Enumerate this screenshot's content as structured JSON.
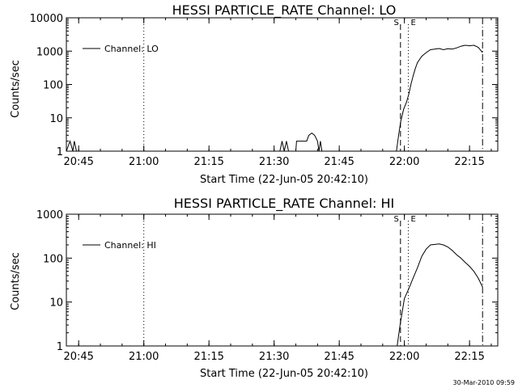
{
  "footer": {
    "timestamp": "30-Mar-2010 09:59"
  },
  "chart_data": [
    {
      "type": "line",
      "title": "HESSI PARTICLE_RATE Channel: LO",
      "xlabel": "Start Time (22-Jun-05 20:42:10)",
      "ylabel": "Counts/sec",
      "x_unit": "minutes of day (HH:MM)",
      "xlim": [
        "20:42:10",
        "22:21:30"
      ],
      "x_ticks": [
        "20:45",
        "21:00",
        "21:15",
        "21:30",
        "21:45",
        "22:00",
        "22:15"
      ],
      "y_scale": "log",
      "ylim": [
        1,
        10000
      ],
      "y_ticks": [
        "1",
        "10",
        "100",
        "1000",
        "10000"
      ],
      "legend": {
        "position": "top-left",
        "entries": [
          "Channel: LO"
        ]
      },
      "markers": [
        {
          "label": "S",
          "time": "21:59:06",
          "style": "dashed"
        },
        {
          "label": "E",
          "time": "22:00:54",
          "style": "dotted"
        }
      ],
      "vlines": [
        {
          "time": "21:00",
          "style": "dotted"
        },
        {
          "time": "22:18",
          "style": "dash-dot"
        }
      ],
      "series": [
        {
          "name": "Channel: LO",
          "points": [
            [
              "20:42:10",
              1
            ],
            [
              "20:43:00",
              2
            ],
            [
              "20:43:40",
              1
            ],
            [
              "20:44:00",
              2
            ],
            [
              "20:44:30",
              1
            ],
            [
              "21:31:20",
              1
            ],
            [
              "21:31:50",
              2
            ],
            [
              "21:32:20",
              1
            ],
            [
              "21:32:50",
              2
            ],
            [
              "21:33:20",
              1
            ],
            [
              "21:35:00",
              1
            ],
            [
              "21:35:10",
              2
            ],
            [
              "21:37:30",
              2
            ],
            [
              "21:38:00",
              3
            ],
            [
              "21:38:40",
              3.5
            ],
            [
              "21:39:20",
              3
            ],
            [
              "21:40:00",
              2
            ],
            [
              "21:40:20",
              1
            ],
            [
              "21:40:40",
              2
            ],
            [
              "21:41:00",
              1
            ],
            [
              "21:58:10",
              1
            ],
            [
              "21:58:40",
              3
            ],
            [
              "21:59:10",
              8
            ],
            [
              "21:59:50",
              18
            ],
            [
              "22:00:30",
              30
            ],
            [
              "22:01:00",
              50
            ],
            [
              "22:01:30",
              100
            ],
            [
              "22:02:00",
              180
            ],
            [
              "22:02:30",
              300
            ],
            [
              "22:03:00",
              450
            ],
            [
              "22:04:00",
              700
            ],
            [
              "22:05:00",
              900
            ],
            [
              "22:06:00",
              1100
            ],
            [
              "22:07:00",
              1150
            ],
            [
              "22:08:00",
              1200
            ],
            [
              "22:09:00",
              1100
            ],
            [
              "22:10:00",
              1180
            ],
            [
              "22:11:00",
              1150
            ],
            [
              "22:12:00",
              1250
            ],
            [
              "22:13:00",
              1400
            ],
            [
              "22:14:00",
              1500
            ],
            [
              "22:15:00",
              1450
            ],
            [
              "22:16:00",
              1500
            ],
            [
              "22:17:00",
              1300
            ],
            [
              "22:18:00",
              900
            ]
          ]
        }
      ]
    },
    {
      "type": "line",
      "title": "HESSI PARTICLE_RATE Channel: HI",
      "xlabel": "Start Time (22-Jun-05 20:42:10)",
      "ylabel": "Counts/sec",
      "x_unit": "minutes of day (HH:MM)",
      "xlim": [
        "20:42:10",
        "22:21:30"
      ],
      "x_ticks": [
        "20:45",
        "21:00",
        "21:15",
        "21:30",
        "21:45",
        "22:00",
        "22:15"
      ],
      "y_scale": "log",
      "ylim": [
        1,
        1000
      ],
      "y_ticks": [
        "1",
        "10",
        "100",
        "1000"
      ],
      "legend": {
        "position": "top-left",
        "entries": [
          "Channel: HI"
        ]
      },
      "markers": [
        {
          "label": "S",
          "time": "21:59:06",
          "style": "dashed"
        },
        {
          "label": "E",
          "time": "22:00:54",
          "style": "dotted"
        }
      ],
      "vlines": [
        {
          "time": "21:00",
          "style": "dotted"
        },
        {
          "time": "22:18",
          "style": "dash-dot"
        }
      ],
      "series": [
        {
          "name": "Channel: HI",
          "points": [
            [
              "21:58:20",
              1
            ],
            [
              "21:59:00",
              3
            ],
            [
              "21:59:30",
              6
            ],
            [
              "22:00:00",
              12
            ],
            [
              "22:01:00",
              20
            ],
            [
              "22:02:00",
              35
            ],
            [
              "22:03:00",
              60
            ],
            [
              "22:04:00",
              110
            ],
            [
              "22:05:00",
              160
            ],
            [
              "22:06:00",
              200
            ],
            [
              "22:07:00",
              205
            ],
            [
              "22:08:00",
              210
            ],
            [
              "22:09:00",
              200
            ],
            [
              "22:10:00",
              180
            ],
            [
              "22:11:00",
              150
            ],
            [
              "22:12:00",
              120
            ],
            [
              "22:13:00",
              100
            ],
            [
              "22:14:00",
              80
            ],
            [
              "22:15:00",
              65
            ],
            [
              "22:16:00",
              50
            ],
            [
              "22:17:00",
              35
            ],
            [
              "22:18:00",
              22
            ]
          ]
        }
      ]
    }
  ]
}
